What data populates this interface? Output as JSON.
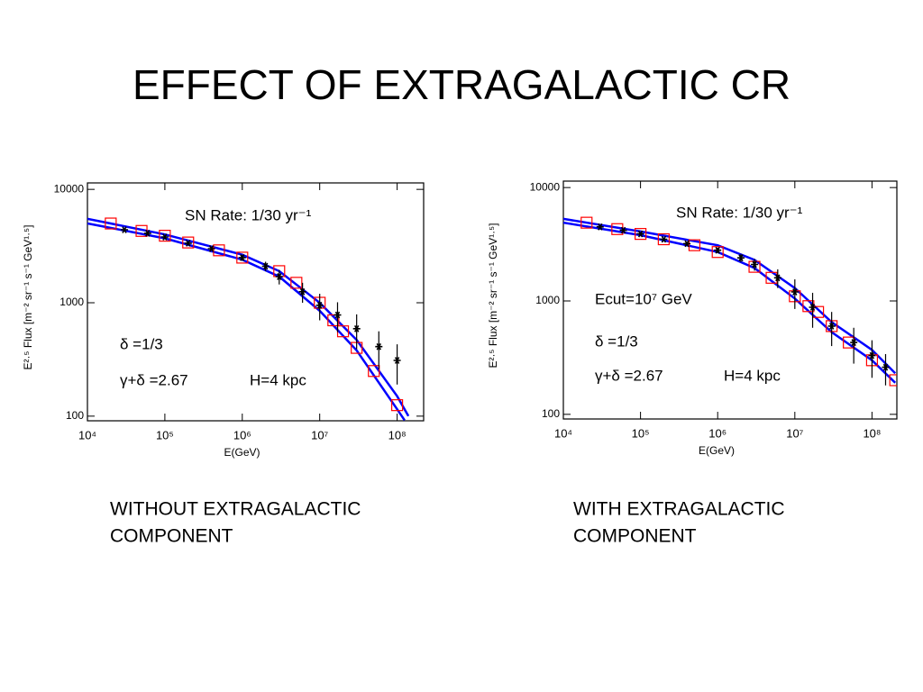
{
  "title": "EFFECT OF EXTRAGALACTIC CR",
  "captions": [
    [
      "WITHOUT EXTRAGALACTIC",
      "COMPONENT"
    ],
    [
      "WITH EXTRAGALACTIC",
      "COMPONENT"
    ]
  ],
  "chart_data": [
    {
      "type": "scatter",
      "xscale": "log",
      "yscale": "log",
      "x_label": "E(GeV)",
      "y_label": "E²·⁵ Flux [m⁻² sr⁻¹ s⁻¹ GeV¹·⁵]",
      "annotations": [
        "SN Rate: 1/30 yr⁻¹",
        "δ =1/3",
        "γ+δ =2.67",
        "H=4 kpc"
      ],
      "xlim": [
        10000,
        220000000
      ],
      "ylim": [
        91,
        11400
      ],
      "xticks": [
        {
          "value": 10000,
          "label": "10⁴"
        },
        {
          "value": 100000,
          "label": "10⁵"
        },
        {
          "value": 1000000,
          "label": "10⁶"
        },
        {
          "value": 10000000,
          "label": "10⁷"
        },
        {
          "value": 100000000,
          "label": "10⁸"
        }
      ],
      "yticks": [
        100,
        1000,
        10000
      ],
      "series": [
        {
          "style": "line",
          "color": "#0000ff",
          "x": [
            10000,
            100000,
            1000000,
            3000000,
            10000000,
            30000000,
            100000000,
            140000000
          ],
          "values": [
            5500,
            4000,
            2650,
            1900,
            1000,
            470,
            150,
            100
          ]
        },
        {
          "style": "line",
          "color": "#0000ff",
          "x": [
            10000,
            100000,
            1000000,
            3000000,
            10000000,
            30000000,
            100000000,
            125000000
          ],
          "values": [
            5000,
            3700,
            2400,
            1700,
            850,
            380,
            115,
            92
          ]
        },
        {
          "style": "squares",
          "color": "#ff0000",
          "x": [
            20000,
            50000,
            100000,
            200000,
            500000,
            1000000,
            3000000,
            5000000,
            10000000,
            15000000,
            20000000,
            30000000,
            50000000,
            100000000
          ],
          "values": [
            5000,
            4300,
            3900,
            3400,
            2900,
            2500,
            1900,
            1500,
            1000,
            700,
            560,
            400,
            250,
            125
          ]
        },
        {
          "style": "errorbar",
          "color": "#000000",
          "x": [
            30000,
            60000,
            100000,
            200000,
            400000,
            1000000,
            2000000,
            3000000,
            6000000,
            10000000,
            17000000,
            30000000,
            58000000,
            100000000
          ],
          "values": [
            4400,
            4100,
            3800,
            3350,
            3000,
            2500,
            2100,
            1700,
            1250,
            950,
            780,
            590,
            410,
            310
          ],
          "errors": [
            100,
            100,
            100,
            100,
            120,
            150,
            200,
            250,
            250,
            250,
            230,
            200,
            150,
            120
          ]
        }
      ]
    },
    {
      "type": "scatter",
      "xscale": "log",
      "yscale": "log",
      "x_label": "E(GeV)",
      "y_label": "E²·⁵ Flux [m⁻² sr⁻¹ s⁻¹ GeV¹·⁵]",
      "annotations": [
        "SN Rate: 1/30 yr⁻¹",
        "Ecut=10⁷ GeV",
        "δ =1/3",
        "γ+δ =2.67",
        "H=4 kpc"
      ],
      "xlim": [
        10000,
        210000000
      ],
      "ylim": [
        91,
        11400
      ],
      "xticks": [
        {
          "value": 10000,
          "label": "10⁴"
        },
        {
          "value": 100000,
          "label": "10⁵"
        },
        {
          "value": 1000000,
          "label": "10⁶"
        },
        {
          "value": 10000000,
          "label": "10⁷"
        },
        {
          "value": 100000000,
          "label": "10⁸"
        }
      ],
      "yticks": [
        100,
        1000,
        10000
      ],
      "series": [
        {
          "style": "line",
          "color": "#0000ff",
          "x": [
            10000,
            100000,
            1000000,
            3000000,
            10000000,
            30000000,
            100000000,
            200000000
          ],
          "values": [
            5300,
            4100,
            3100,
            2300,
            1300,
            650,
            370,
            230
          ]
        },
        {
          "style": "line",
          "color": "#0000ff",
          "x": [
            10000,
            100000,
            1000000,
            3000000,
            10000000,
            30000000,
            100000000,
            200000000
          ],
          "values": [
            4900,
            3800,
            2700,
            1950,
            1050,
            530,
            300,
            190
          ]
        },
        {
          "style": "squares",
          "color": "#ff0000",
          "x": [
            20000,
            50000,
            100000,
            200000,
            500000,
            1000000,
            3000000,
            5000000,
            10000000,
            15000000,
            20000000,
            30000000,
            50000000,
            100000000,
            200000000
          ],
          "values": [
            4900,
            4300,
            3900,
            3500,
            3100,
            2700,
            2000,
            1600,
            1100,
            900,
            800,
            600,
            430,
            300,
            200
          ]
        },
        {
          "style": "errorbar",
          "color": "#000000",
          "x": [
            30000,
            60000,
            100000,
            200000,
            400000,
            1000000,
            2000000,
            3000000,
            6000000,
            10000000,
            17000000,
            30000000,
            58000000,
            100000000,
            150000000
          ],
          "values": [
            4500,
            4200,
            3900,
            3500,
            3200,
            2800,
            2400,
            2100,
            1600,
            1200,
            880,
            600,
            430,
            330,
            260
          ],
          "errors": [
            100,
            100,
            100,
            100,
            120,
            150,
            200,
            250,
            300,
            350,
            300,
            200,
            150,
            120,
            80
          ]
        }
      ]
    }
  ]
}
